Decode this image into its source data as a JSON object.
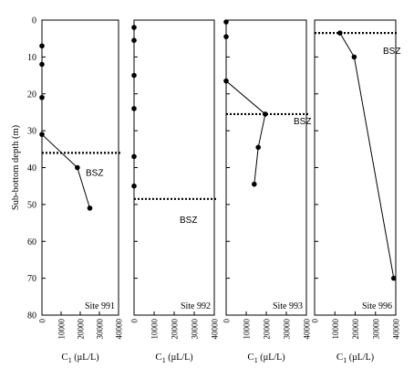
{
  "chart_data": [
    {
      "type": "line",
      "site_label": "Site 991",
      "bsz_label": "BSZ",
      "bsz_depth": 36,
      "xlabel": "C",
      "xlabel_sub": "1",
      "xlabel_unit": "(µL/L)",
      "ylabel": "Sub-bottom depth (m)",
      "xlim": [
        0,
        40000
      ],
      "ylim": [
        0,
        80
      ],
      "x_ticks": [
        "0",
        "10000",
        "20000",
        "30000",
        "40000"
      ],
      "y_ticks": [
        "0",
        "10",
        "20",
        "30",
        "40",
        "50",
        "60",
        "70",
        "80"
      ],
      "points": [
        {
          "x": 0,
          "y": 7
        },
        {
          "x": 0,
          "y": 12
        },
        {
          "x": 0,
          "y": 21
        },
        {
          "x": 0,
          "y": 31
        },
        {
          "x": 18500,
          "y": 40
        },
        {
          "x": 25000,
          "y": 51
        }
      ]
    },
    {
      "type": "line",
      "site_label": "Site 992",
      "bsz_label": "BSZ",
      "bsz_depth": 48.5,
      "xlabel": "C",
      "xlabel_sub": "1",
      "xlabel_unit": "(µL/L)",
      "xlim": [
        0,
        40000
      ],
      "ylim": [
        0,
        80
      ],
      "x_ticks": [
        "0",
        "10000",
        "20000",
        "30000",
        "40000"
      ],
      "points": [
        {
          "x": 0,
          "y": 2
        },
        {
          "x": 0,
          "y": 5.5
        },
        {
          "x": 0,
          "y": 15
        },
        {
          "x": 0,
          "y": 24
        },
        {
          "x": 0,
          "y": 37
        },
        {
          "x": 0,
          "y": 45
        }
      ]
    },
    {
      "type": "line",
      "site_label": "Site 993",
      "bsz_label": "BSZ",
      "bsz_depth": 25.5,
      "xlabel": "C",
      "xlabel_sub": "1",
      "xlabel_unit": "(µL/L)",
      "xlim": [
        0,
        40000
      ],
      "ylim": [
        0,
        80
      ],
      "x_ticks": [
        "0",
        "10000",
        "20000",
        "30000",
        "40000"
      ],
      "points": [
        {
          "x": 0,
          "y": 0.5
        },
        {
          "x": 0,
          "y": 4.5
        },
        {
          "x": 0,
          "y": 16.5
        },
        {
          "x": 19500,
          "y": 25.5
        },
        {
          "x": 16000,
          "y": 34.5
        },
        {
          "x": 14000,
          "y": 44.5
        }
      ]
    },
    {
      "type": "line",
      "site_label": "Site 996",
      "bsz_label": "BSZ",
      "bsz_depth": 3.5,
      "xlabel": "C",
      "xlabel_sub": "1",
      "xlabel_unit": "(µL/L)",
      "xlim": [
        0,
        40000
      ],
      "ylim": [
        0,
        80
      ],
      "x_ticks": [
        "0",
        "10000",
        "20000",
        "30000",
        "40000"
      ],
      "points": [
        {
          "x": 12500,
          "y": 3.5
        },
        {
          "x": 19500,
          "y": 10
        },
        {
          "x": 39000,
          "y": 70
        }
      ]
    }
  ]
}
